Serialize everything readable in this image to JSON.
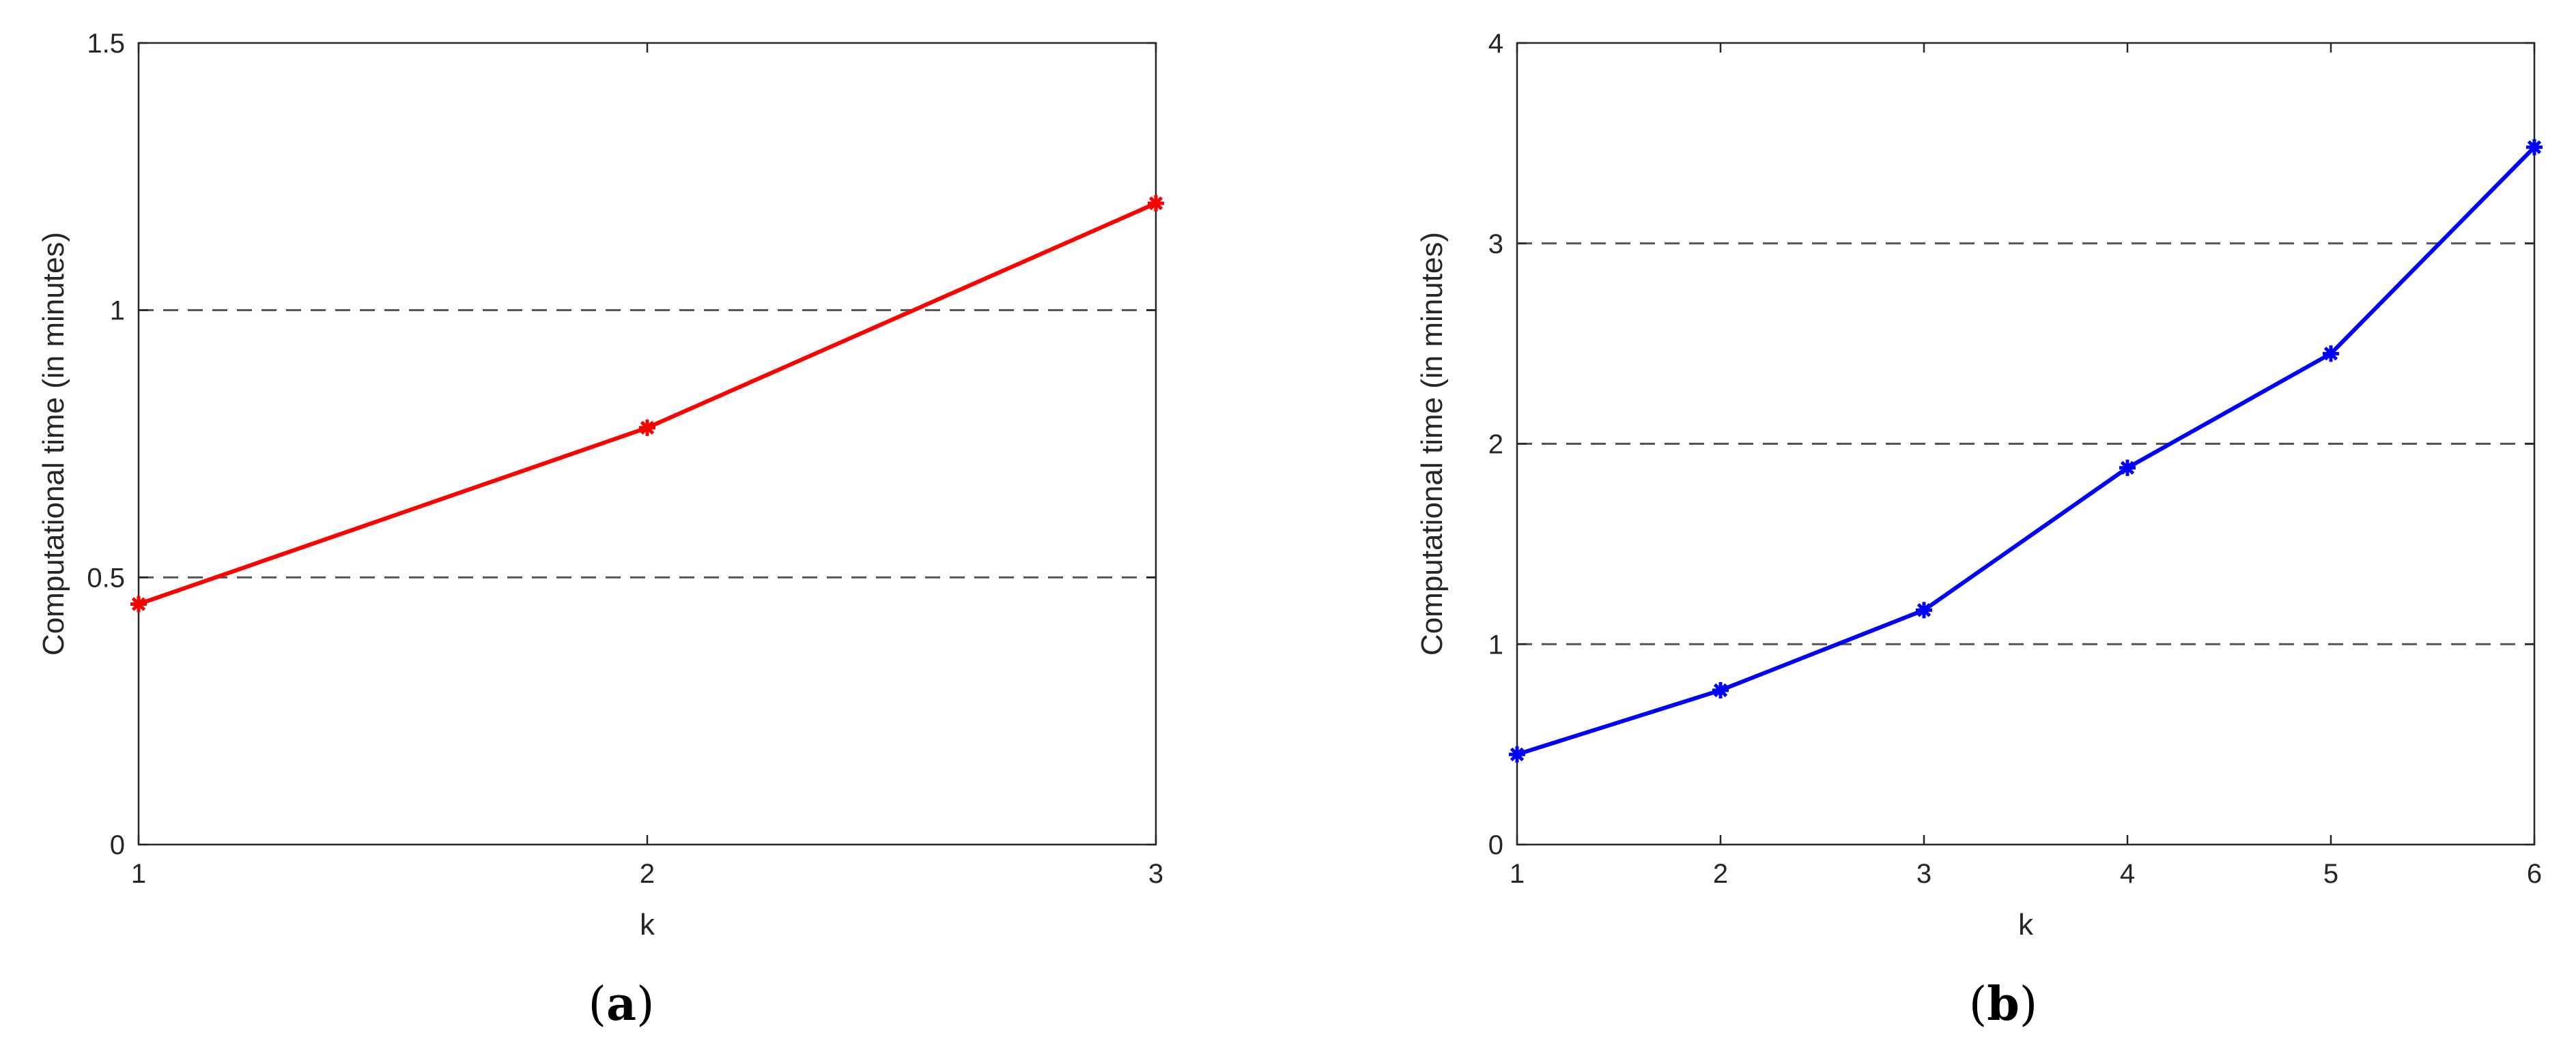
{
  "chart_data": [
    {
      "type": "line",
      "panel_label": "a",
      "xlabel": "k",
      "ylabel": "Computational time (in minutes)",
      "x": [
        1,
        2,
        3
      ],
      "x_ticks": [
        "1",
        "2",
        "3"
      ],
      "y_ticks": [
        "0",
        "0.5",
        "1",
        "1.5"
      ],
      "xlim": [
        1,
        3
      ],
      "ylim": [
        0,
        1.5
      ],
      "series": [
        {
          "x": [
            1,
            2,
            3
          ],
          "values": [
            0.45,
            0.78,
            1.2
          ],
          "color": "#ff0000",
          "marker": "asterisk"
        }
      ],
      "grid": "horizontal dashed",
      "legend": "none"
    },
    {
      "type": "line",
      "panel_label": "b",
      "xlabel": "k",
      "ylabel": "Computational time (in minutes)",
      "x": [
        1,
        2,
        3,
        4,
        5,
        6
      ],
      "x_ticks": [
        "1",
        "2",
        "3",
        "4",
        "5",
        "6"
      ],
      "y_ticks": [
        "0",
        "1",
        "2",
        "3",
        "4"
      ],
      "xlim": [
        1,
        6
      ],
      "ylim": [
        0,
        4
      ],
      "series": [
        {
          "x": [
            1,
            2,
            3,
            4,
            5,
            6
          ],
          "values": [
            0.45,
            0.77,
            1.17,
            1.88,
            2.45,
            3.48
          ],
          "color": "#0000ff",
          "marker": "asterisk"
        }
      ],
      "grid": "horizontal dashed",
      "legend": "none"
    }
  ]
}
